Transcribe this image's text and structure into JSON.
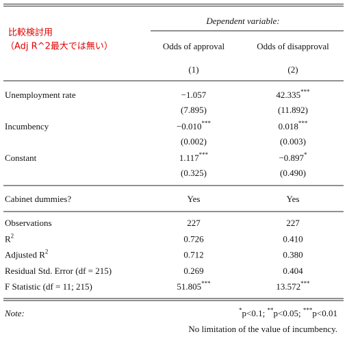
{
  "annotation": [
    "比較検討用",
    "（Adj R^2最大では無い）"
  ],
  "table": {
    "dependent_label": "Dependent variable:",
    "columns": [
      "Odds of approval",
      "Odds of disapproval"
    ],
    "column_numbers": [
      "(1)",
      "(2)"
    ],
    "coef_rows": [
      {
        "label": "Unemployment rate",
        "estimates": [
          [
            "−1.057"
          ],
          [
            "42.335",
            "***"
          ]
        ],
        "std_errors": [
          "(7.895)",
          "(11.892)"
        ]
      },
      {
        "label": "Incumbency",
        "estimates": [
          [
            "−0.010",
            "***"
          ],
          [
            "0.018",
            "***"
          ]
        ],
        "std_errors": [
          "(0.002)",
          "(0.003)"
        ]
      },
      {
        "label": "Constant",
        "estimates": [
          [
            "1.117",
            "***"
          ],
          [
            "−0.897",
            "*"
          ]
        ],
        "std_errors": [
          "(0.325)",
          "(0.490)"
        ]
      }
    ],
    "cabinet_row": {
      "label": "Cabinet dummies?",
      "values": [
        "Yes",
        "Yes"
      ]
    },
    "stat_rows": [
      {
        "label": [
          "Observations"
        ],
        "values": [
          [
            "227"
          ],
          [
            "227"
          ]
        ]
      },
      {
        "label": [
          "R",
          "2"
        ],
        "values": [
          [
            "0.726"
          ],
          [
            "0.410"
          ]
        ]
      },
      {
        "label": [
          "Adjusted R",
          "2"
        ],
        "values": [
          [
            "0.712"
          ],
          [
            "0.380"
          ]
        ]
      },
      {
        "label": [
          "Residual Std. Error (df = 215)"
        ],
        "values": [
          [
            "0.269"
          ],
          [
            "0.404"
          ]
        ]
      },
      {
        "label": [
          "F Statistic (df = 11; 215)"
        ],
        "values": [
          [
            "51.805",
            "***"
          ],
          [
            "13.572",
            "***"
          ]
        ]
      }
    ],
    "note_label": "Note:",
    "note_significance": [
      "*",
      "p<0.1; ",
      "**",
      "p<0.05; ",
      "***",
      "p<0.01"
    ],
    "note_text": "No limitation of the value of incumbency."
  }
}
